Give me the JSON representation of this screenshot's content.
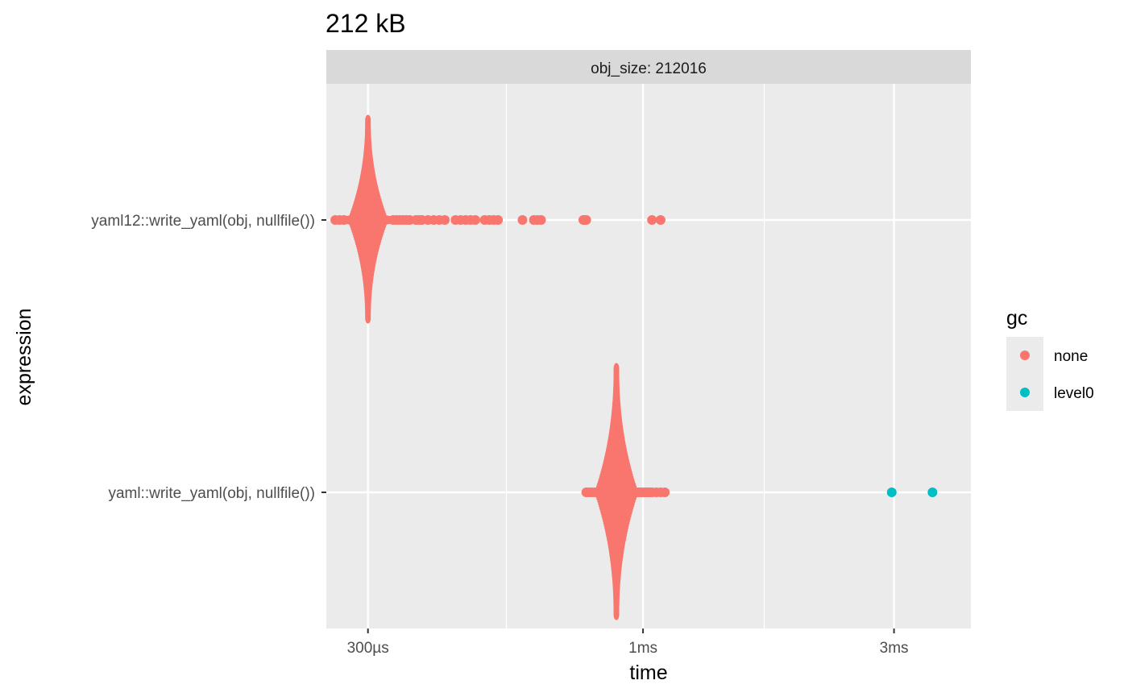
{
  "chart_data": {
    "type": "scatter",
    "subtype": "beeswarm",
    "title": "212 kB",
    "facet_label": "obj_size: 212016",
    "xlabel": "time",
    "ylabel": "expression",
    "x_scale": "log10",
    "x_unit": "seconds",
    "xlim": [
      0.00025,
      0.0042
    ],
    "x_ticks": [
      {
        "value": 0.0003,
        "label": "300µs"
      },
      {
        "value": 0.001,
        "label": "1ms"
      },
      {
        "value": 0.003,
        "label": "3ms"
      }
    ],
    "x_minor_ticks": [
      0.00055,
      0.0017
    ],
    "categories": [
      "yaml12::write_yaml(obj, nullfile())",
      "yaml::write_yaml(obj, nullfile())"
    ],
    "grid": true,
    "legend": {
      "title": "gc",
      "position": "right",
      "entries": [
        {
          "name": "none",
          "color": "#F8766D"
        },
        {
          "name": "level0",
          "color": "#00BFC4"
        }
      ]
    },
    "series": [
      {
        "name": "none",
        "color": "#F8766D",
        "groups": [
          {
            "category": "yaml12::write_yaml(obj, nullfile())",
            "core_mode": 0.0003,
            "core_range": [
              0.00028,
              0.00032
            ],
            "points": [
              0.00026,
              0.000265,
              0.00027,
              0.000335,
              0.00034,
              0.000345,
              0.00035,
              0.000355,
              0.00036,
              0.00037,
              0.000375,
              0.00038,
              0.00039,
              0.0004,
              0.00041,
              0.00042,
              0.00044,
              0.00045,
              0.00046,
              0.00047,
              0.00048,
              0.0005,
              0.00051,
              0.00052,
              0.00053,
              0.00059,
              0.00062,
              0.00063,
              0.00064,
              0.00077,
              0.000775,
              0.00078,
              0.00104,
              0.00108
            ]
          },
          {
            "category": "yaml::write_yaml(obj, nullfile())",
            "core_mode": 0.00089,
            "core_range": [
              0.00086,
              0.00093
            ],
            "points": [
              0.00078,
              0.00079,
              0.0008,
              0.00081,
              0.00082,
              0.00083,
              0.00084,
              0.00085,
              0.00095,
              0.00096,
              0.00097,
              0.00098,
              0.00099,
              0.001,
              0.00101,
              0.00102,
              0.00103,
              0.00104,
              0.00106,
              0.00108,
              0.0011
            ]
          }
        ]
      },
      {
        "name": "level0",
        "color": "#00BFC4",
        "groups": [
          {
            "category": "yaml::write_yaml(obj, nullfile())",
            "points": [
              0.00297,
              0.00355
            ]
          }
        ]
      }
    ]
  }
}
